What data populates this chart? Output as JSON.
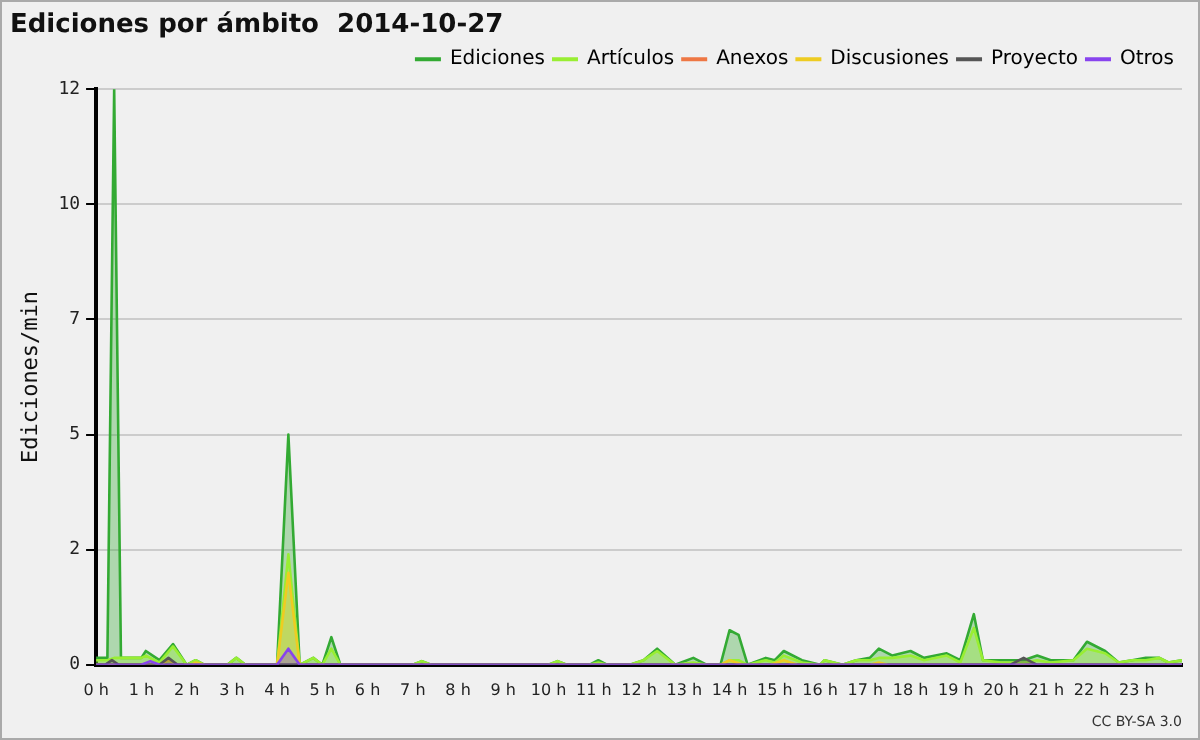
{
  "chart_data": {
    "type": "area",
    "title": "Ediciones por ámbito  2014-10-27",
    "ylabel": "Ediciones/min",
    "annotations": [
      "CC BY-SA 3.0"
    ],
    "xlim": [
      0,
      24
    ],
    "xticks": [
      {
        "value": 0,
        "label": "0 h"
      },
      {
        "value": 1,
        "label": "1 h"
      },
      {
        "value": 2,
        "label": "2 h"
      },
      {
        "value": 3,
        "label": "3 h"
      },
      {
        "value": 4,
        "label": "4 h"
      },
      {
        "value": 5,
        "label": "5 h"
      },
      {
        "value": 6,
        "label": "6 h"
      },
      {
        "value": 7,
        "label": "7 h"
      },
      {
        "value": 8,
        "label": "8 h"
      },
      {
        "value": 9,
        "label": "9 h"
      },
      {
        "value": 10,
        "label": "10 h"
      },
      {
        "value": 11,
        "label": "11 h"
      },
      {
        "value": 12,
        "label": "12 h"
      },
      {
        "value": 13,
        "label": "13 h"
      },
      {
        "value": 14,
        "label": "14 h"
      },
      {
        "value": 15,
        "label": "15 h"
      },
      {
        "value": 16,
        "label": "16 h"
      },
      {
        "value": 17,
        "label": "17 h"
      },
      {
        "value": 18,
        "label": "18 h"
      },
      {
        "value": 19,
        "label": "19 h"
      },
      {
        "value": 20,
        "label": "20 h"
      },
      {
        "value": 21,
        "label": "21 h"
      },
      {
        "value": 22,
        "label": "22 h"
      },
      {
        "value": 23,
        "label": "23 h"
      }
    ],
    "ylim": [
      0,
      12.5
    ],
    "yticks": [
      0,
      {
        "value": 2.5,
        "label": "2"
      },
      {
        "value": 5,
        "label": "5"
      },
      {
        "value": 7.5,
        "label": "7"
      },
      {
        "value": 10,
        "label": "10"
      },
      {
        "value": 12.5,
        "label": "12"
      }
    ],
    "grid": "y",
    "legend": "top right",
    "marker": "none",
    "series": [
      {
        "name": "Ediciones",
        "color": "#33aa33",
        "x": [
          0,
          0.25,
          0.4,
          0.55,
          1,
          1.1,
          1.4,
          1.7,
          2,
          2.2,
          2.4,
          2.9,
          3.1,
          3.3,
          4,
          4.25,
          4.5,
          4.8,
          5,
          5.2,
          5.4,
          7,
          7.2,
          7.4,
          10,
          10.2,
          10.4,
          10.9,
          11.1,
          11.3,
          11.8,
          12.1,
          12.4,
          12.8,
          13.2,
          13.5,
          13.8,
          14,
          14.2,
          14.4,
          14.8,
          15,
          15.2,
          15.6,
          16,
          16.1,
          16.5,
          16.8,
          17.1,
          17.3,
          17.6,
          18,
          18.3,
          18.8,
          19.1,
          19.4,
          19.6,
          20,
          20.5,
          20.8,
          21.1,
          21.6,
          21.9,
          22.3,
          22.6,
          22.9,
          23.2,
          23.5,
          23.7,
          24
        ],
        "values": [
          0.15,
          0.15,
          12.5,
          0.15,
          0.15,
          0.3,
          0.1,
          0.45,
          0,
          0.1,
          0,
          0,
          0.15,
          0,
          0,
          5,
          0,
          0.15,
          0,
          0.6,
          0,
          0,
          0.08,
          0,
          0,
          0.08,
          0,
          0,
          0.1,
          0,
          0,
          0.1,
          0.35,
          0,
          0.15,
          0,
          0,
          0.75,
          0.65,
          0,
          0.15,
          0.1,
          0.3,
          0.1,
          0,
          0.1,
          0,
          0.1,
          0.15,
          0.35,
          0.2,
          0.3,
          0.15,
          0.25,
          0.1,
          1.1,
          0.1,
          0.1,
          0.1,
          0.2,
          0.1,
          0.1,
          0.5,
          0.3,
          0.05,
          0.1,
          0.15,
          0.15,
          0.05,
          0.1
        ]
      },
      {
        "name": "Artículos",
        "color": "#99ee33",
        "x": [
          0,
          0.25,
          0.4,
          0.55,
          1,
          1.1,
          1.4,
          1.7,
          2,
          2.2,
          2.4,
          2.9,
          3.1,
          3.3,
          4,
          4.25,
          4.5,
          4.8,
          5,
          5.2,
          5.4,
          7,
          7.2,
          7.4,
          10,
          10.2,
          10.4,
          10.9,
          11.1,
          11.3,
          11.8,
          12.1,
          12.4,
          12.8,
          13.2,
          13.5,
          13.8,
          14,
          14.2,
          14.4,
          14.8,
          15,
          15.2,
          15.6,
          16,
          16.1,
          16.5,
          16.8,
          17.1,
          17.3,
          17.6,
          18,
          18.3,
          18.8,
          19.1,
          19.4,
          19.6,
          20,
          20.5,
          20.8,
          21.1,
          21.6,
          21.9,
          22.3,
          22.6,
          22.9,
          23.2,
          23.5,
          23.7,
          24
        ],
        "values": [
          0.1,
          0.1,
          0.15,
          0.15,
          0.15,
          0.2,
          0.05,
          0.4,
          0,
          0.1,
          0,
          0,
          0.15,
          0,
          0,
          2.4,
          0,
          0.15,
          0,
          0.35,
          0,
          0,
          0.08,
          0,
          0,
          0.08,
          0,
          0,
          0.05,
          0,
          0,
          0.1,
          0.3,
          0,
          0.05,
          0,
          0,
          0.1,
          0.1,
          0,
          0.1,
          0.05,
          0.2,
          0.05,
          0,
          0.1,
          0,
          0.1,
          0.1,
          0.15,
          0.15,
          0.2,
          0.1,
          0.2,
          0.05,
          0.8,
          0.1,
          0.05,
          0.05,
          0.1,
          0.05,
          0.1,
          0.35,
          0.25,
          0.05,
          0.1,
          0.1,
          0.15,
          0.05,
          0.1
        ]
      },
      {
        "name": "Anexos",
        "color": "#ee7744"
      },
      {
        "name": "Discusiones",
        "color": "#eecc22",
        "x": [
          0,
          1.4,
          1.6,
          1.8,
          2.1,
          2.2,
          2.4,
          4,
          4.25,
          4.5,
          13.8,
          14,
          14.3,
          14.9,
          15.2,
          15.5,
          17.1,
          17.3,
          17.5,
          24
        ],
        "values": [
          0,
          0,
          0.1,
          0,
          0,
          0.05,
          0,
          0,
          2,
          0,
          0,
          0.1,
          0,
          0,
          0.1,
          0,
          0,
          0.05,
          0,
          0
        ]
      },
      {
        "name": "Proyecto",
        "color": "#555555",
        "x": [
          0,
          0.2,
          0.35,
          0.5,
          1.4,
          1.6,
          1.8,
          20.2,
          20.5,
          20.8,
          24
        ],
        "values": [
          0,
          0,
          0.1,
          0,
          0,
          0.15,
          0,
          0,
          0.15,
          0,
          0
        ]
      },
      {
        "name": "Otros",
        "color": "#8844ee",
        "x": [
          0,
          1,
          1.2,
          1.4,
          4,
          4.25,
          4.5,
          24
        ],
        "values": [
          0,
          0,
          0.08,
          0,
          0,
          0.35,
          0,
          0
        ]
      }
    ]
  }
}
